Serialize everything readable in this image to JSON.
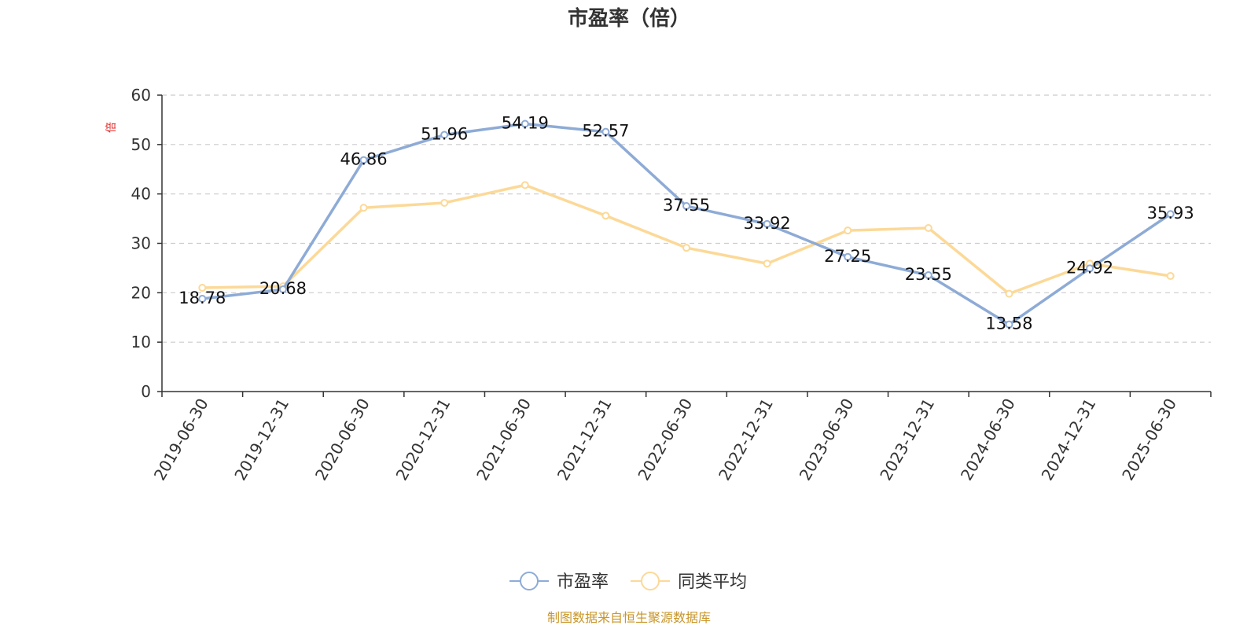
{
  "chart_data": {
    "type": "line",
    "title": "市盈率（倍）",
    "ylabel": "倍",
    "xlabel": "",
    "ylim": [
      0,
      60
    ],
    "yticks": [
      0,
      10,
      20,
      30,
      40,
      50,
      60
    ],
    "grid": true,
    "legend_position": "bottom",
    "categories": [
      "2019-06-30",
      "2019-12-31",
      "2020-06-30",
      "2020-12-31",
      "2021-06-30",
      "2021-12-31",
      "2022-06-30",
      "2022-12-31",
      "2023-06-30",
      "2023-12-31",
      "2024-06-30",
      "2024-12-31",
      "2025-06-30"
    ],
    "series": [
      {
        "name": "市盈率",
        "color": "#8eabd6",
        "show_labels": true,
        "values": [
          18.78,
          20.68,
          46.86,
          51.96,
          54.19,
          52.57,
          37.55,
          33.92,
          27.25,
          23.55,
          13.58,
          24.92,
          35.93
        ]
      },
      {
        "name": "同类平均",
        "color": "#fcd998",
        "show_labels": false,
        "values": [
          21.0,
          21.3,
          37.2,
          38.2,
          41.8,
          35.6,
          29.1,
          25.9,
          32.6,
          33.1,
          19.8,
          25.9,
          23.4
        ]
      }
    ],
    "source_note": "制图数据来自恒生聚源数据库"
  }
}
